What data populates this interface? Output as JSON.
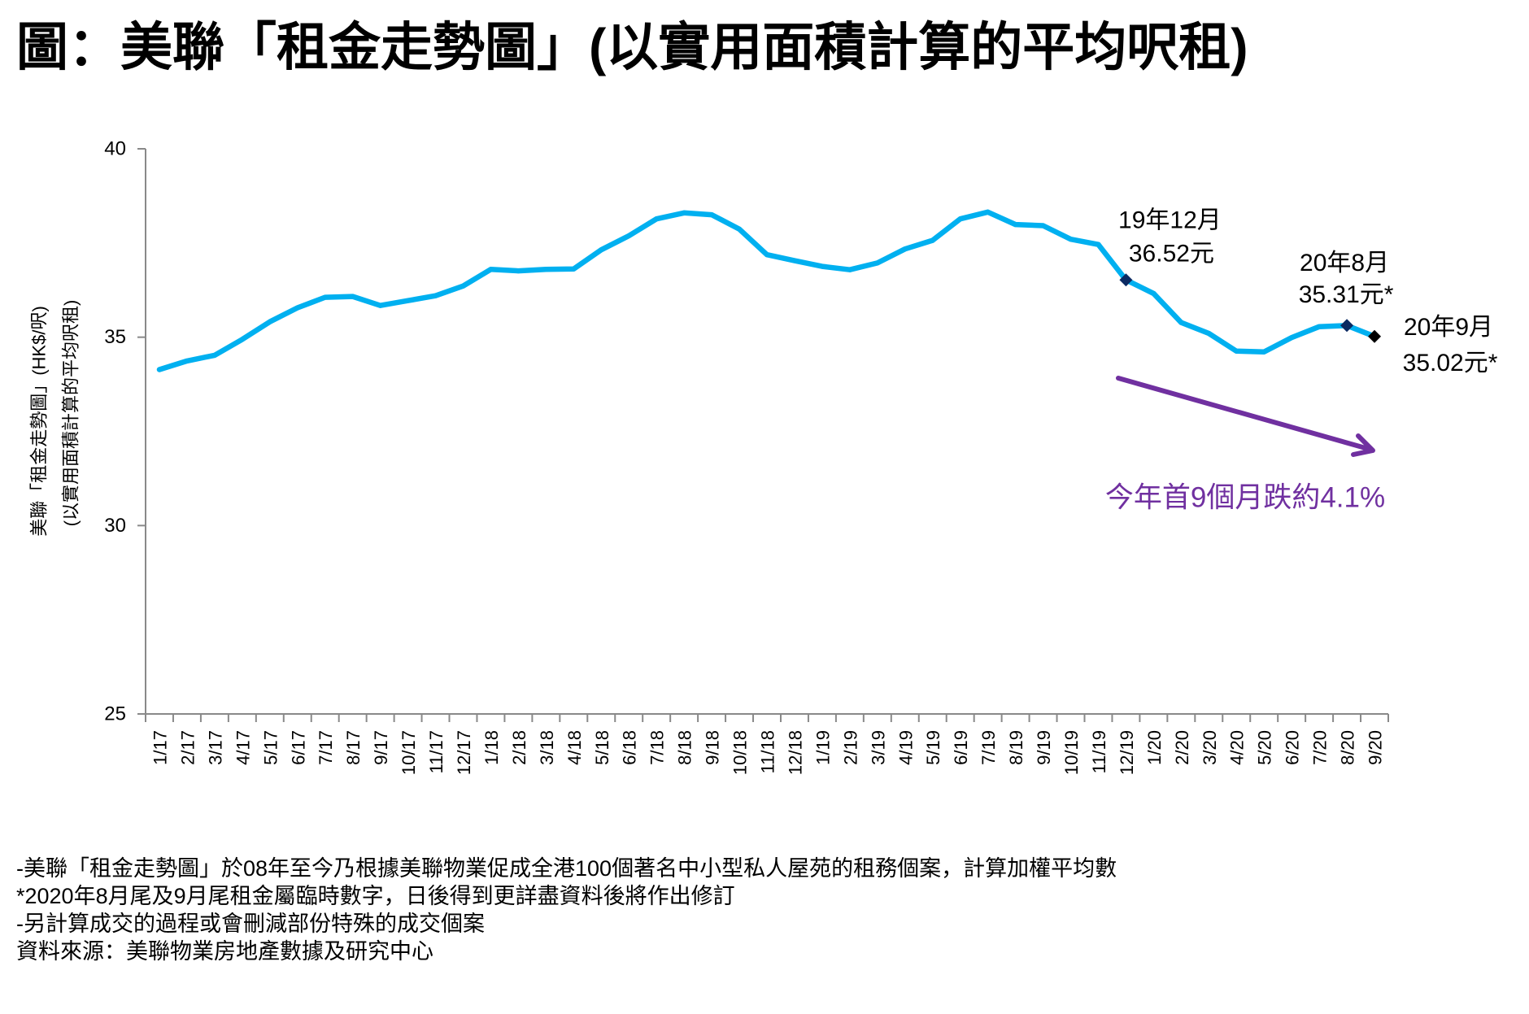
{
  "title": "圖：美聯「租金走勢圖」(以實用面積計算的平均呎租)",
  "chart_data": {
    "type": "line",
    "title": "圖：美聯「租金走勢圖」(以實用面積計算的平均呎租)",
    "xlabel": "",
    "ylabel": "美聯「租金走勢圖」(HK$/呎) (以實用面積計算的平均呎租)",
    "ylabel_lines": [
      "美聯「租金走勢圖」(HK$/呎)",
      "(以實用面積計算的平均呎租)"
    ],
    "ylim": [
      25,
      40
    ],
    "yticks": [
      25,
      30,
      35,
      40
    ],
    "grid": false,
    "legend": "none",
    "categories": [
      "1/17",
      "2/17",
      "3/17",
      "4/17",
      "5/17",
      "6/17",
      "7/17",
      "8/17",
      "9/17",
      "10/17",
      "11/17",
      "12/17",
      "1/18",
      "2/18",
      "3/18",
      "4/18",
      "5/18",
      "6/18",
      "7/18",
      "8/18",
      "9/18",
      "10/18",
      "11/18",
      "12/18",
      "1/19",
      "2/19",
      "3/19",
      "4/19",
      "5/19",
      "6/19",
      "7/19",
      "8/19",
      "9/19",
      "10/19",
      "11/19",
      "12/19",
      "1/20",
      "2/20",
      "3/20",
      "4/20",
      "5/20",
      "6/20",
      "7/20",
      "8/20",
      "9/20"
    ],
    "series": [
      {
        "name": "美聯「租金走勢圖」平均呎租 (HK$/呎)",
        "color": "#00b0f0",
        "values": [
          34.14,
          34.37,
          34.52,
          34.94,
          35.41,
          35.78,
          36.06,
          36.08,
          35.84,
          35.97,
          36.1,
          36.36,
          36.8,
          36.76,
          36.8,
          36.81,
          37.32,
          37.69,
          38.14,
          38.3,
          38.25,
          37.87,
          37.19,
          37.03,
          36.88,
          36.79,
          36.97,
          37.34,
          37.57,
          38.14,
          38.32,
          37.99,
          37.96,
          37.6,
          37.46,
          36.52,
          36.16,
          35.39,
          35.1,
          34.63,
          34.61,
          34.99,
          35.28,
          35.31,
          35.02
        ]
      }
    ],
    "annotations": [
      {
        "category": "12/19",
        "value": 36.52,
        "lines": [
          "19年12月",
          "36.52元"
        ],
        "marker_color": "#0b2a62"
      },
      {
        "category": "8/20",
        "value": 35.31,
        "lines": [
          "20年8月",
          "35.31元*"
        ],
        "marker_color": "#0b2a62"
      },
      {
        "category": "9/20",
        "value": 35.02,
        "lines": [
          "20年9月",
          "35.02元*"
        ],
        "marker_color": "#000000"
      }
    ],
    "trend_note": {
      "text": "今年首9個月跌約4.1%",
      "color": "#7030a0",
      "direction": "down"
    },
    "axis_color": "#898989"
  },
  "footnotes": [
    "-美聯「租金走勢圖」於08年至今乃根據美聯物業促成全港100個著名中小型私人屋苑的租務個案，計算加權平均數",
    "*2020年8月尾及9月尾租金屬臨時數字，日後得到更詳盡資料後將作出修訂",
    "-另計算成交的過程或會刪減部份特殊的成交個案",
    "資料來源：美聯物業房地產數據及研究中心"
  ]
}
